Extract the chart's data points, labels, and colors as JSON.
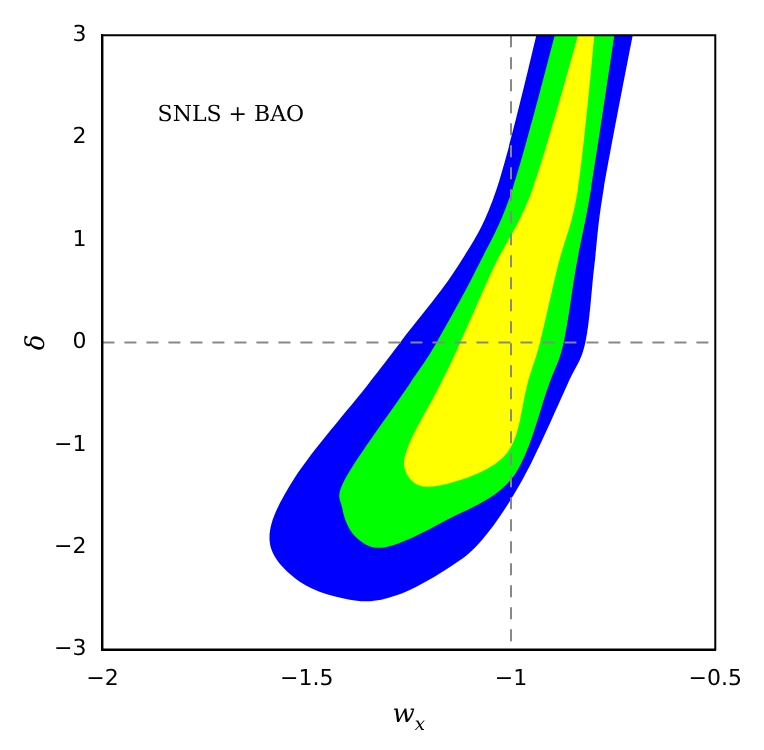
{
  "chart_data": {
    "type": "area",
    "xlabel": "w$_{x}$",
    "ylabel": "δ",
    "annotations": [
      "SNLS + BAO"
    ],
    "xlim": [
      -2,
      -0.5
    ],
    "xticks": [
      -2,
      -1.5,
      -1,
      -0.5
    ],
    "ylim": [
      -3,
      3
    ],
    "yticks": [
      -3,
      -2,
      -1,
      0,
      1,
      2,
      3
    ],
    "grid": false,
    "ref_lines": [
      {
        "axis": "x",
        "value": -1,
        "color": "#888888",
        "line_style": "dashed"
      },
      {
        "axis": "y",
        "value": 0,
        "color": "#888888",
        "line_style": "dashed"
      }
    ],
    "series": [
      {
        "color": "#0000ff",
        "x": [
          -0.938,
          -1.035,
          -1.129,
          -1.271,
          -1.35,
          -1.529,
          -1.591,
          -1.516,
          -1.382,
          -1.28,
          -1.16,
          -1.071,
          -0.969,
          -0.862,
          -0.818,
          -0.796,
          -0.773,
          -0.702
        ],
        "values": [
          3,
          1.5,
          0.75,
          0,
          -0.41,
          -1.32,
          -1.93,
          -2.34,
          -2.52,
          -2.47,
          -2.22,
          -1.93,
          -1.32,
          -0.41,
          0,
          0.75,
          1.5,
          3
        ]
      },
      {
        "color": "#00ff00",
        "x": [
          -0.893,
          -0.996,
          -1.08,
          -1.182,
          -1.249,
          -1.404,
          -1.413,
          -1.38,
          -1.307,
          -1.16,
          -0.996,
          -0.907,
          -0.871,
          -0.84,
          -0.804,
          -0.747
        ],
        "values": [
          3,
          1.5,
          0.75,
          0,
          -0.41,
          -1.32,
          -1.62,
          -1.9,
          -2.0,
          -1.74,
          -1.32,
          -0.41,
          0,
          0.75,
          1.5,
          3
        ]
      },
      {
        "color": "#ffff00",
        "x": [
          -0.836,
          -0.947,
          -1.04,
          -1.124,
          -1.173,
          -1.249,
          -1.258,
          -1.204,
          -1.071,
          -0.996,
          -0.96,
          -0.929,
          -0.885,
          -0.836,
          -0.796
        ],
        "values": [
          3,
          1.5,
          0.75,
          0,
          -0.41,
          -0.99,
          -1.26,
          -1.41,
          -1.26,
          -0.99,
          -0.41,
          0,
          0.75,
          1.5,
          3
        ]
      }
    ]
  }
}
